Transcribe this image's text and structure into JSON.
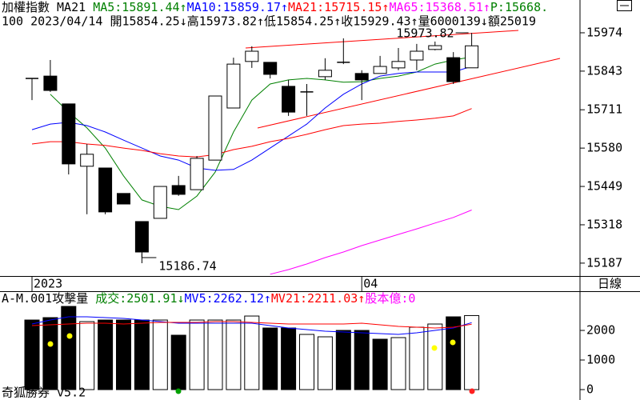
{
  "header": {
    "line1": [
      {
        "text": "加權指數 MA21 ",
        "color": "#000000"
      },
      {
        "text": "MA5:15891.44↑",
        "color": "#008000"
      },
      {
        "text": "MA10:15859.17↑",
        "color": "#0000ff"
      },
      {
        "text": "MA21:15715.15↑",
        "color": "#ff0000"
      },
      {
        "text": "MA65:15368.51↑",
        "color": "#ff00ff"
      },
      {
        "text": "P:15668.",
        "color": "#008000"
      }
    ],
    "line2": "100 2023/04/14 開15854.25↓高15973.82↑低15854.25↑收15929.43↑量6000139↓額25019"
  },
  "period": "日線",
  "footer": "奇狐勝券 v5.2",
  "chart_data": [
    {
      "type": "candlestick",
      "categories": [
        "2023",
        null,
        null,
        null,
        null,
        null,
        null,
        null,
        null,
        null,
        null,
        null,
        null,
        null,
        null,
        null,
        null,
        null,
        "04",
        null,
        null,
        null,
        null,
        null,
        null
      ],
      "open": [
        15818,
        15826,
        15731,
        15518,
        15512,
        15425,
        15329,
        15340,
        15452,
        15438,
        15539,
        15717,
        15876,
        15873,
        15791,
        15772,
        15824,
        15873,
        15835,
        15835,
        15854,
        15881,
        15917,
        15889,
        15854.25
      ],
      "high": [
        15818,
        15881,
        15731,
        15594,
        15512,
        15425,
        15329,
        15449,
        15485,
        15553,
        15758,
        15889,
        15928,
        15873,
        15813,
        15799,
        15887,
        15955,
        15846,
        15895,
        15922,
        15936,
        15944,
        15908,
        15973.82
      ],
      "low": [
        15744,
        15772,
        15490,
        15354,
        15354,
        15389,
        15186.74,
        15340,
        15417,
        15438,
        15539,
        15717,
        15854,
        15818,
        15690,
        15690,
        15813,
        15867,
        15744,
        15835,
        15846,
        15846,
        15914,
        15799,
        15854.25
      ],
      "close": [
        15818,
        15777,
        15526,
        15559,
        15362,
        15389,
        15225,
        15449,
        15422,
        15545,
        15758,
        15867,
        15911,
        15832,
        15703,
        15772,
        15846,
        15873,
        15813,
        15859,
        15876,
        15911,
        15930,
        15807,
        15929.43
      ],
      "overlays": [
        {
          "color": "#008000",
          "values": [
            null,
            15764,
            15703,
            15649,
            15580,
            15485,
            15403,
            15381,
            15370,
            15416,
            15498,
            15635,
            15744,
            15799,
            15813,
            15818,
            15813,
            15805,
            15807,
            15818,
            15826,
            15840,
            15867,
            15881,
            15891.44
          ]
        },
        {
          "color": "#0000ff",
          "values": [
            15643,
            15662,
            15668,
            15657,
            15635,
            15607,
            15580,
            15553,
            15539,
            15512,
            15504,
            15507,
            15539,
            15580,
            15621,
            15662,
            15717,
            15764,
            15799,
            15826,
            15835,
            15840,
            15840,
            15840,
            15859.17
          ]
        },
        {
          "color": "#ff0000",
          "values": [
            15594,
            15602,
            15602,
            15594,
            15589,
            15580,
            15572,
            15561,
            15553,
            15550,
            15558,
            15575,
            15586,
            15602,
            15613,
            15627,
            15643,
            15657,
            15662,
            15665,
            15671,
            15676,
            15682,
            15690,
            15715.15
          ]
        },
        {
          "color": "#ff00ff",
          "values": [
            null,
            null,
            null,
            null,
            null,
            null,
            null,
            null,
            null,
            null,
            null,
            null,
            null,
            15149,
            15165,
            15184,
            15206,
            15225,
            15247,
            15266,
            15285,
            15304,
            15324,
            15343,
            15368.51
          ]
        }
      ],
      "annotations": [
        {
          "value": 15973.82,
          "label": "15973.82"
        },
        {
          "value": 15186.74,
          "label": "15186.74"
        }
      ],
      "ylim": [
        15143,
        16086
      ],
      "yticks": [
        15187,
        15318,
        15449,
        15580,
        15711,
        15843,
        15974
      ]
    },
    {
      "type": "bar",
      "title": [
        {
          "text": "A-M.001攻擊量 ",
          "color": "#000000"
        },
        {
          "text": "成交:2501.91↓",
          "color": "#008000"
        },
        {
          "text": "MV5:2262.12↑",
          "color": "#0000ff"
        },
        {
          "text": "MV21:2211.03↑",
          "color": "#ff0000"
        },
        {
          "text": "股本億:0",
          "color": "#ff00ff"
        }
      ],
      "values": [
        2351,
        2432,
        2811,
        2297,
        2351,
        2351,
        2351,
        2351,
        1838,
        2351,
        2351,
        2351,
        2486,
        2081,
        2081,
        1865,
        1784,
        2000,
        2000,
        1703,
        1757,
        2108,
        2216,
        2459,
        2501.91
      ],
      "bar_fill": [
        "#000000",
        "#000000",
        "#000000",
        "#ffffff",
        "#000000",
        "#000000",
        "#000000",
        "#ffffff",
        "#000000",
        "#ffffff",
        "#ffffff",
        "#ffffff",
        "#ffffff",
        "#000000",
        "#000000",
        "#ffffff",
        "#ffffff",
        "#000000",
        "#000000",
        "#000000",
        "#ffffff",
        "#ffffff",
        "#ffffff",
        "#000000",
        "#ffffff"
      ],
      "lines": [
        {
          "color": "#0000ff",
          "values": [
            2216,
            2351,
            2460,
            2460,
            2433,
            2406,
            2351,
            2298,
            2243,
            2243,
            2243,
            2243,
            2243,
            2162,
            2081,
            2027,
            1973,
            1946,
            1919,
            1892,
            1865,
            1919,
            2000,
            2081,
            2262.12
          ]
        },
        {
          "color": "#ff0000",
          "values": [
            2162,
            2189,
            2216,
            2243,
            2243,
            2216,
            2243,
            2270,
            2270,
            2270,
            2298,
            2298,
            2270,
            2243,
            2216,
            2216,
            2216,
            2216,
            2243,
            2189,
            2135,
            2108,
            2081,
            2108,
            2211.03
          ]
        }
      ],
      "ylim": [
        -216,
        3298
      ],
      "yticks": [
        0,
        1000,
        2000
      ]
    }
  ]
}
